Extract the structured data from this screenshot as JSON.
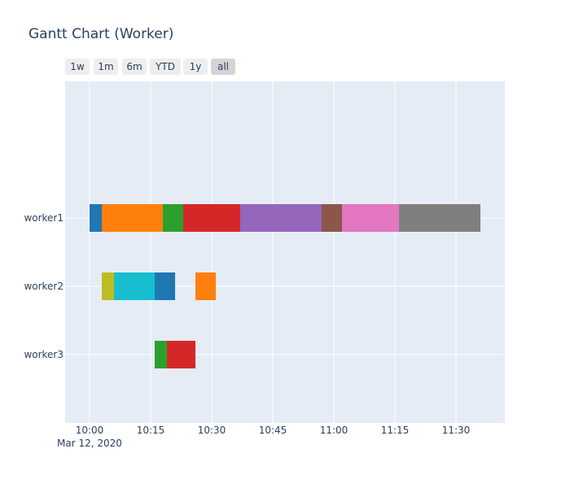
{
  "title": "Gantt Chart (Worker)",
  "range_buttons": [
    {
      "label": "1w",
      "active": false
    },
    {
      "label": "1m",
      "active": false
    },
    {
      "label": "6m",
      "active": false
    },
    {
      "label": "YTD",
      "active": false
    },
    {
      "label": "1y",
      "active": false
    },
    {
      "label": "all",
      "active": true
    }
  ],
  "colors": {
    "plot_bg": "#e5ecf6",
    "grid": "#ffffff",
    "text": "#2a3f5f",
    "button_bg": "#eeeeee",
    "button_active_bg": "#d4d4d4"
  },
  "chart_data": {
    "type": "gantt",
    "title": "Gantt Chart (Worker)",
    "date_label": "Mar 12, 2020",
    "x_ticks": [
      "10:00",
      "10:15",
      "10:30",
      "10:45",
      "11:00",
      "11:15",
      "11:30"
    ],
    "xlim": [
      "09:54",
      "11:42"
    ],
    "categories": [
      "worker1",
      "worker2",
      "worker3"
    ],
    "grid": true,
    "tasks": [
      {
        "worker": "worker1",
        "start": "10:00",
        "end": "10:03",
        "color": "#1f77b4"
      },
      {
        "worker": "worker1",
        "start": "10:03",
        "end": "10:18",
        "color": "#ff7f0e"
      },
      {
        "worker": "worker1",
        "start": "10:18",
        "end": "10:23",
        "color": "#2ca02c"
      },
      {
        "worker": "worker1",
        "start": "10:23",
        "end": "10:37",
        "color": "#d62728"
      },
      {
        "worker": "worker1",
        "start": "10:37",
        "end": "10:57",
        "color": "#9467bd"
      },
      {
        "worker": "worker1",
        "start": "10:57",
        "end": "11:02",
        "color": "#8c564b"
      },
      {
        "worker": "worker1",
        "start": "11:02",
        "end": "11:16",
        "color": "#e377c2"
      },
      {
        "worker": "worker1",
        "start": "11:16",
        "end": "11:36",
        "color": "#7f7f7f"
      },
      {
        "worker": "worker2",
        "start": "10:03",
        "end": "10:06",
        "color": "#bcbd22"
      },
      {
        "worker": "worker2",
        "start": "10:06",
        "end": "10:16",
        "color": "#17becf"
      },
      {
        "worker": "worker2",
        "start": "10:16",
        "end": "10:21",
        "color": "#1f77b4"
      },
      {
        "worker": "worker2",
        "start": "10:26",
        "end": "10:31",
        "color": "#ff7f0e"
      },
      {
        "worker": "worker3",
        "start": "10:16",
        "end": "10:19",
        "color": "#2ca02c"
      },
      {
        "worker": "worker3",
        "start": "10:19",
        "end": "10:26",
        "color": "#d62728"
      }
    ]
  }
}
